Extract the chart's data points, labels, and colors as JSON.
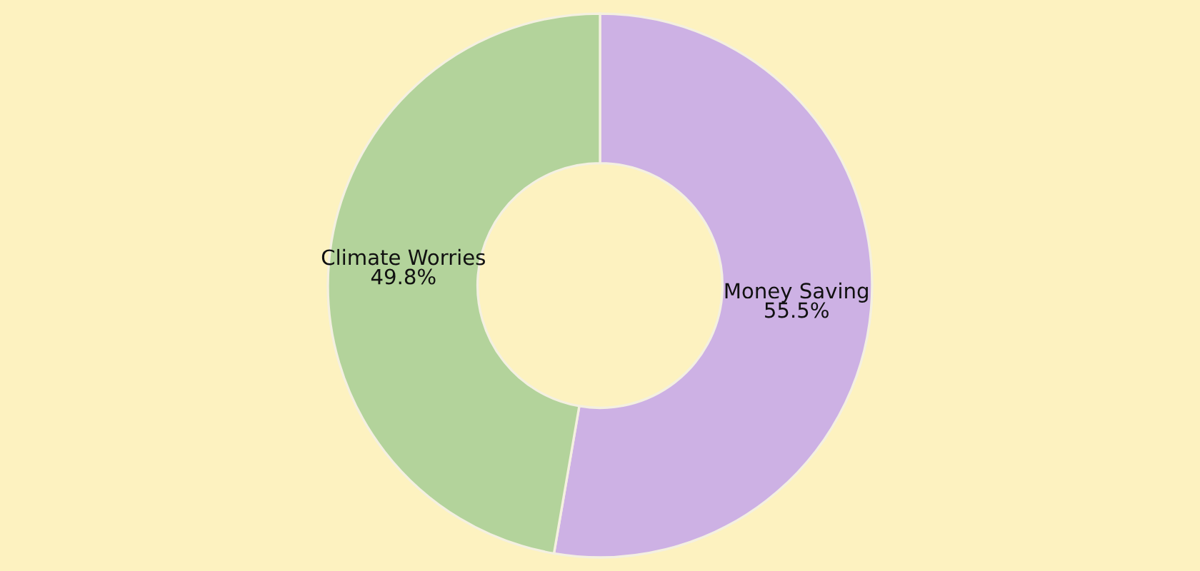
{
  "chart_data": {
    "type": "donut",
    "categories": [
      "Money Saving",
      "Climate Worries"
    ],
    "values": [
      55.5,
      49.8
    ],
    "value_labels": [
      "55.5%",
      "49.8%"
    ],
    "colors": [
      "#cdb1e4",
      "#b3d39b"
    ],
    "legend": false
  }
}
